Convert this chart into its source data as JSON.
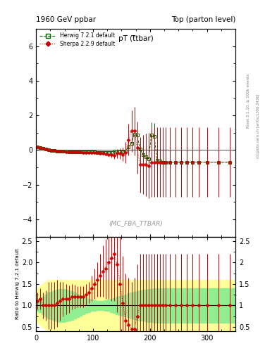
{
  "title_left": "1960 GeV ppbar",
  "title_right": "Top (parton level)",
  "plot_title": "pT (ttbar)",
  "plot_title_sub": "ttbar",
  "xlabel": "",
  "ylabel_ratio": "Ratio to Herwig 7.2.1 default",
  "watermark": "(MC_FBA_TTBAR)",
  "right_label": "Rivet 3.1.10, ≥ 100k events",
  "arxiv_label": "mcplots.cern.ch [arXiv:1306.3436]",
  "herwig_label": "Herwig 7.2.1 default",
  "sherpa_label": "Sherpa 2.2.9 default",
  "herwig_color": "#006400",
  "sherpa_color": "#cc0000",
  "xlim": [
    0,
    350
  ],
  "ylim_main": [
    -5,
    7
  ],
  "ylim_ratio": [
    0.4,
    2.6
  ],
  "ratio_yticks": [
    0.5,
    1.0,
    1.5,
    2.0,
    2.5
  ],
  "main_yticks": [
    -4,
    -2,
    0,
    2,
    4,
    6
  ],
  "xticks": [
    0,
    100,
    200,
    300
  ],
  "bin_edges": [
    0,
    5,
    10,
    15,
    20,
    25,
    30,
    35,
    40,
    45,
    50,
    55,
    60,
    65,
    70,
    75,
    80,
    85,
    90,
    95,
    100,
    105,
    110,
    115,
    120,
    125,
    130,
    135,
    140,
    145,
    150,
    155,
    160,
    165,
    170,
    175,
    180,
    185,
    190,
    195,
    200,
    205,
    210,
    215,
    220,
    225,
    230,
    240,
    250,
    260,
    270,
    280,
    290,
    310,
    330,
    350
  ],
  "x_centers": [
    2.5,
    7.5,
    12.5,
    17.5,
    22.5,
    27.5,
    32.5,
    37.5,
    42.5,
    47.5,
    52.5,
    57.5,
    62.5,
    67.5,
    72.5,
    77.5,
    82.5,
    87.5,
    92.5,
    97.5,
    102.5,
    107.5,
    112.5,
    117.5,
    122.5,
    127.5,
    132.5,
    137.5,
    142.5,
    147.5,
    152.5,
    157.5,
    162.5,
    167.5,
    172.5,
    177.5,
    182.5,
    187.5,
    192.5,
    197.5,
    202.5,
    207.5,
    212.5,
    217.5,
    222.5,
    227.5,
    235,
    245,
    255,
    265,
    275,
    285,
    300,
    320,
    340
  ],
  "y_herwig": [
    0.18,
    0.12,
    0.08,
    0.04,
    0.01,
    -0.02,
    -0.04,
    -0.06,
    -0.06,
    -0.07,
    -0.08,
    -0.09,
    -0.09,
    -0.1,
    -0.1,
    -0.1,
    -0.11,
    -0.11,
    -0.12,
    -0.12,
    -0.12,
    -0.13,
    -0.13,
    -0.14,
    -0.14,
    -0.13,
    -0.14,
    -0.08,
    -0.06,
    -0.1,
    -0.12,
    -0.05,
    0.2,
    0.4,
    0.9,
    0.85,
    0.05,
    -0.25,
    -0.4,
    -0.5,
    0.85,
    0.8,
    -0.6,
    -0.65,
    -0.7,
    -0.7,
    -0.7,
    -0.7,
    -0.7,
    -0.7,
    -0.7,
    -0.7,
    -0.7,
    -0.7,
    -0.7
  ],
  "yerr_herwig": [
    0.02,
    0.02,
    0.01,
    0.01,
    0.01,
    0.01,
    0.01,
    0.01,
    0.01,
    0.01,
    0.01,
    0.01,
    0.01,
    0.01,
    0.01,
    0.01,
    0.01,
    0.01,
    0.01,
    0.01,
    0.01,
    0.01,
    0.01,
    0.02,
    0.02,
    0.02,
    0.03,
    0.04,
    0.05,
    0.06,
    0.08,
    0.15,
    0.3,
    0.45,
    0.55,
    0.6,
    0.65,
    0.65,
    0.7,
    0.7,
    0.75,
    0.75,
    0.75,
    0.75,
    0.8,
    0.8,
    0.8,
    0.8,
    0.8,
    0.8,
    0.8,
    0.8,
    0.8,
    0.8,
    0.8
  ],
  "y_sherpa": [
    0.2,
    0.14,
    0.08,
    0.04,
    0.01,
    -0.02,
    -0.04,
    -0.06,
    -0.07,
    -0.08,
    -0.09,
    -0.1,
    -0.11,
    -0.11,
    -0.12,
    -0.12,
    -0.13,
    -0.13,
    -0.14,
    -0.14,
    -0.15,
    -0.16,
    -0.17,
    -0.2,
    -0.22,
    -0.25,
    -0.28,
    -0.3,
    -0.2,
    -0.2,
    -0.25,
    -0.15,
    0.6,
    1.1,
    1.1,
    0.15,
    -0.85,
    -0.85,
    -0.85,
    -0.9,
    -0.7,
    -0.7,
    -0.7,
    -0.7,
    -0.7,
    -0.7,
    -0.7,
    -0.7,
    -0.7,
    -0.7,
    -0.7,
    -0.7,
    -0.7,
    -0.7,
    -0.7
  ],
  "yerr_sherpa": [
    0.02,
    0.02,
    0.01,
    0.01,
    0.01,
    0.01,
    0.01,
    0.01,
    0.01,
    0.01,
    0.01,
    0.01,
    0.01,
    0.01,
    0.01,
    0.01,
    0.01,
    0.01,
    0.01,
    0.02,
    0.02,
    0.03,
    0.04,
    0.06,
    0.08,
    0.1,
    0.15,
    0.2,
    0.25,
    0.3,
    0.4,
    0.6,
    0.9,
    1.2,
    1.4,
    1.5,
    1.6,
    1.7,
    1.8,
    1.9,
    2.0,
    2.0,
    2.0,
    2.0,
    2.0,
    2.0,
    2.0,
    2.0,
    2.0,
    2.0,
    2.0,
    2.0,
    2.0,
    2.0,
    2.0
  ],
  "ratio_green_lo": [
    0.88,
    0.85,
    0.8,
    0.75,
    0.7,
    0.68,
    0.65,
    0.63,
    0.62,
    0.62,
    0.63,
    0.65,
    0.67,
    0.7,
    0.73,
    0.76,
    0.79,
    0.82,
    0.85,
    0.87,
    0.88,
    0.89,
    0.89,
    0.89,
    0.88,
    0.87,
    0.85,
    0.83,
    0.8,
    0.78,
    0.76,
    0.74,
    0.72,
    0.7,
    0.68,
    0.67,
    0.65,
    0.64,
    0.63,
    0.62,
    0.61,
    0.6,
    0.6,
    0.6,
    0.6,
    0.6,
    0.6,
    0.6,
    0.6,
    0.6,
    0.6,
    0.6,
    0.6,
    0.6,
    0.6
  ],
  "ratio_green_hi": [
    1.12,
    1.15,
    1.2,
    1.25,
    1.3,
    1.32,
    1.35,
    1.37,
    1.38,
    1.38,
    1.37,
    1.35,
    1.33,
    1.3,
    1.27,
    1.24,
    1.21,
    1.18,
    1.15,
    1.13,
    1.12,
    1.11,
    1.11,
    1.11,
    1.12,
    1.13,
    1.15,
    1.17,
    1.2,
    1.22,
    1.24,
    1.26,
    1.28,
    1.3,
    1.32,
    1.33,
    1.35,
    1.36,
    1.37,
    1.38,
    1.39,
    1.4,
    1.4,
    1.4,
    1.4,
    1.4,
    1.4,
    1.4,
    1.4,
    1.4,
    1.4,
    1.4,
    1.4,
    1.4,
    1.4
  ],
  "ratio_yellow_lo": [
    0.6,
    0.55,
    0.5,
    0.45,
    0.4,
    0.4,
    0.4,
    0.4,
    0.4,
    0.4,
    0.4,
    0.4,
    0.4,
    0.4,
    0.4,
    0.4,
    0.4,
    0.4,
    0.4,
    0.4,
    0.4,
    0.4,
    0.4,
    0.4,
    0.4,
    0.4,
    0.4,
    0.4,
    0.4,
    0.4,
    0.4,
    0.4,
    0.4,
    0.4,
    0.4,
    0.4,
    0.4,
    0.4,
    0.4,
    0.4,
    0.4,
    0.4,
    0.4,
    0.4,
    0.4,
    0.4,
    0.4,
    0.4,
    0.4,
    0.4,
    0.4,
    0.4,
    0.4,
    0.4,
    0.4
  ],
  "ratio_yellow_hi": [
    1.4,
    1.45,
    1.5,
    1.55,
    1.6,
    1.6,
    1.6,
    1.6,
    1.6,
    1.6,
    1.6,
    1.6,
    1.6,
    1.6,
    1.6,
    1.6,
    1.6,
    1.6,
    1.6,
    1.6,
    1.6,
    1.6,
    1.6,
    1.6,
    1.6,
    1.6,
    1.6,
    1.6,
    1.6,
    1.6,
    1.6,
    1.6,
    1.6,
    1.6,
    1.6,
    1.6,
    1.6,
    1.6,
    1.6,
    1.6,
    1.6,
    1.6,
    1.6,
    1.6,
    1.6,
    1.6,
    1.6,
    1.6,
    1.6,
    1.6,
    1.6,
    1.6,
    1.6,
    1.6,
    1.6
  ],
  "ratio_sherpa_y": [
    1.1,
    1.15,
    1.0,
    1.0,
    1.0,
    1.0,
    1.0,
    1.05,
    1.1,
    1.15,
    1.15,
    1.15,
    1.2,
    1.2,
    1.2,
    1.2,
    1.2,
    1.25,
    1.3,
    1.4,
    1.5,
    1.6,
    1.7,
    1.8,
    1.85,
    2.0,
    2.1,
    2.2,
    1.95,
    1.5,
    1.05,
    0.65,
    0.55,
    0.45,
    0.45,
    0.75,
    1.0,
    1.0,
    1.0,
    1.0,
    1.0,
    1.0,
    1.0,
    1.0,
    1.0,
    1.0,
    1.0,
    1.0,
    1.0,
    1.0,
    1.0,
    1.0,
    1.0,
    1.0,
    1.0
  ],
  "ratio_sherpa_err": [
    0.2,
    0.25,
    0.3,
    0.35,
    0.55,
    0.55,
    0.55,
    0.55,
    0.45,
    0.4,
    0.35,
    0.32,
    0.3,
    0.28,
    0.25,
    0.25,
    0.25,
    0.25,
    0.25,
    0.3,
    0.35,
    0.4,
    0.5,
    0.6,
    0.7,
    0.85,
    1.0,
    1.1,
    1.1,
    1.1,
    1.1,
    1.1,
    1.1,
    1.1,
    1.2,
    1.2,
    1.2,
    1.2,
    1.2,
    1.2,
    1.2,
    1.2,
    1.2,
    1.2,
    1.2,
    1.2,
    1.2,
    1.2,
    1.2,
    1.2,
    1.2,
    1.2,
    1.2,
    1.2,
    1.2
  ],
  "bg_color": "#ffffff",
  "green_band_color": "#90ee90",
  "yellow_band_color": "#ffff99"
}
